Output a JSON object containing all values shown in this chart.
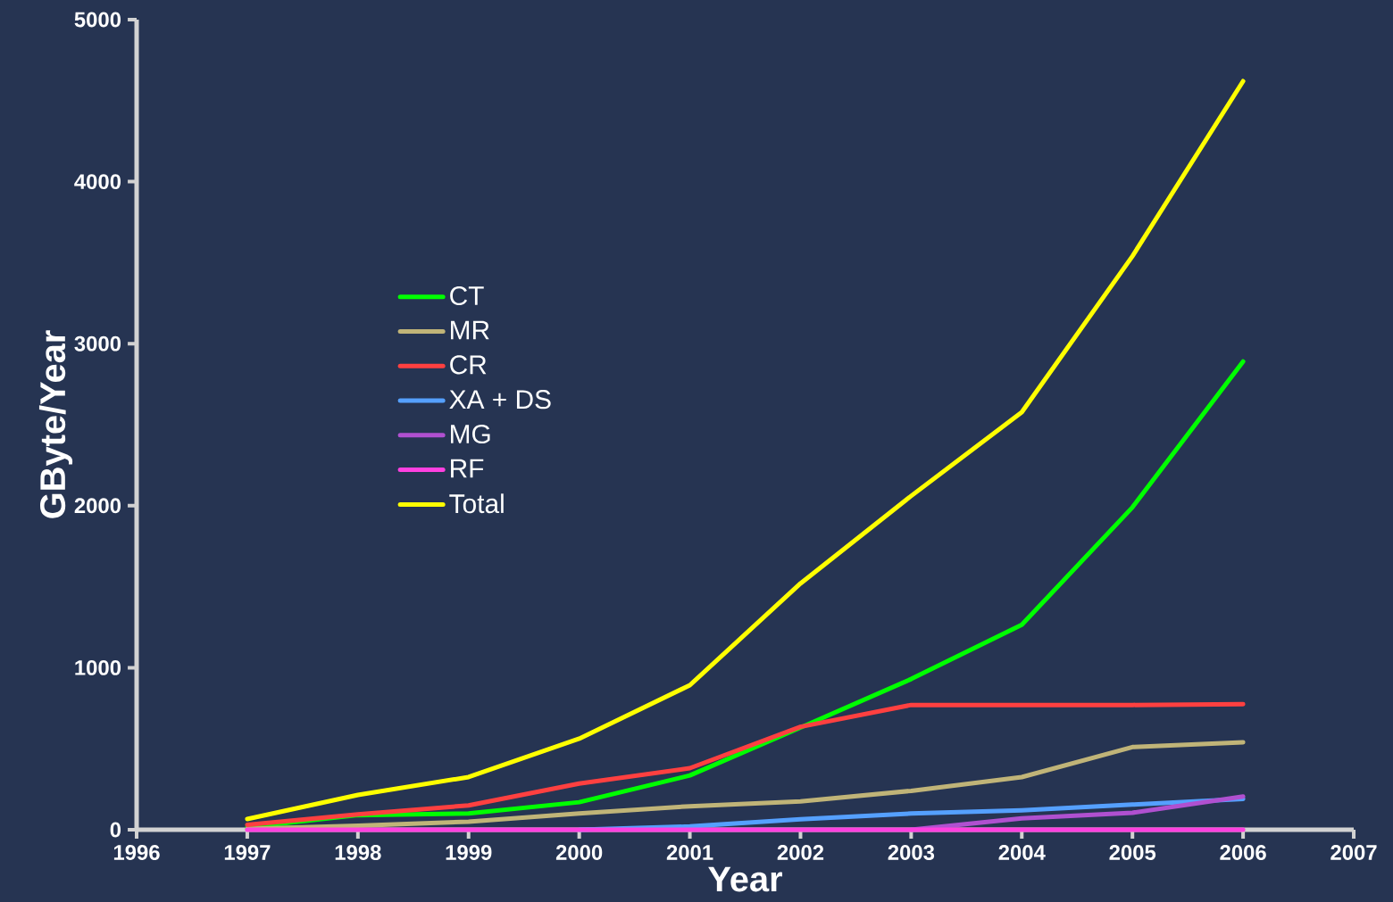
{
  "chart_data": {
    "type": "line",
    "xlabel": "Year",
    "ylabel": "GByte/Year",
    "x": [
      1997,
      1998,
      1999,
      2000,
      2001,
      2002,
      2003,
      2004,
      2005,
      2006
    ],
    "xlim": [
      1996,
      2007
    ],
    "xticks": [
      1996,
      1997,
      1998,
      1999,
      2000,
      2001,
      2002,
      2003,
      2004,
      2005,
      2006,
      2007
    ],
    "ylim": [
      0,
      5000
    ],
    "yticks": [
      0,
      1000,
      2000,
      3000,
      4000,
      5000
    ],
    "legend": "left",
    "grid": false,
    "marker": "none",
    "line_style": "solid",
    "series": [
      {
        "name": "CT",
        "color": "#00ff00",
        "values": [
          15,
          90,
          100,
          170,
          335,
          630,
          930,
          1265,
          1990,
          2890
        ]
      },
      {
        "name": "MR",
        "color": "#c0b478",
        "values": [
          5,
          25,
          50,
          100,
          145,
          175,
          240,
          325,
          510,
          540
        ]
      },
      {
        "name": "CR",
        "color": "#ff4040",
        "values": [
          30,
          95,
          150,
          285,
          380,
          635,
          770,
          770,
          770,
          775
        ]
      },
      {
        "name": "XA + DS",
        "color": "#55a0ff",
        "values": [
          null,
          null,
          null,
          0,
          20,
          65,
          100,
          120,
          155,
          190
        ]
      },
      {
        "name": "MG",
        "color": "#b050d0",
        "values": [
          null,
          null,
          null,
          null,
          null,
          null,
          0,
          70,
          105,
          205
        ]
      },
      {
        "name": "RF",
        "color": "#ff40e0",
        "values": [
          0,
          0,
          0,
          0,
          0,
          0,
          0,
          0,
          0,
          0
        ]
      },
      {
        "name": "Total",
        "color": "#ffff00",
        "values": [
          66,
          215,
          325,
          562,
          892,
          1520,
          2060,
          2577,
          3540,
          4620
        ]
      }
    ]
  }
}
